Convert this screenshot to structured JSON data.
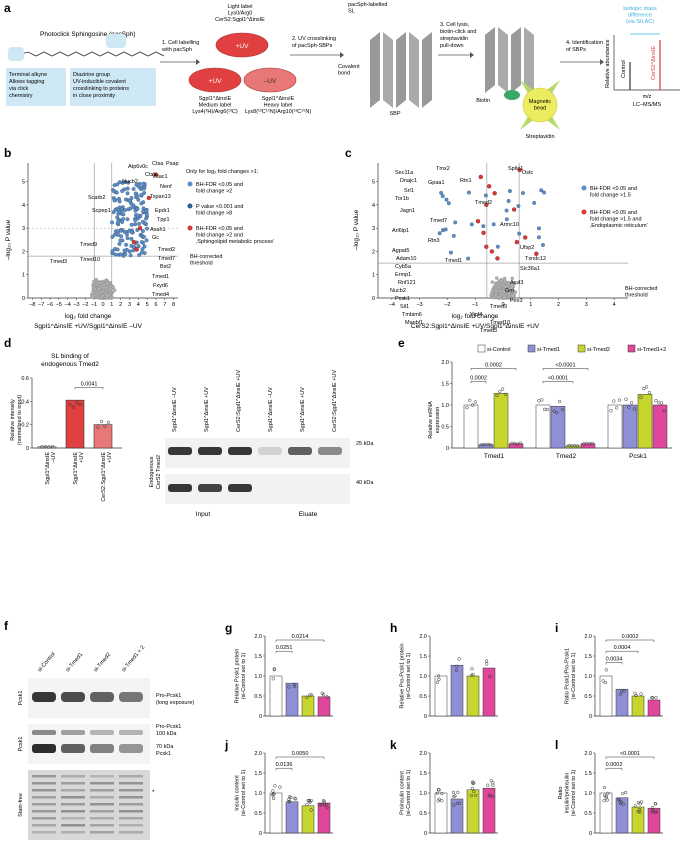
{
  "colors": {
    "blue": "#5b8fc7",
    "red": "#d63a3a",
    "grey": "#b0b0b0",
    "si_control": "#ffffff",
    "si_tmed1": "#8f8fd6",
    "si_tmed2": "#c7d62e",
    "si_tmed1_2": "#e0479a",
    "light_blue_box": "#cfe8f5",
    "cyan_text": "#3fb0e0",
    "dish_red": "#e04040",
    "dish_rose": "#e87878",
    "bead": "#ecec60",
    "stain_bg": "#d8d8d8"
  },
  "panel_a": {
    "letter": "a",
    "compound_title": "Photoclick Sphingosine (pacSph)",
    "alkyne_note": "Terminal alkyne\nAllows tagging\nvia click\nchemistry",
    "diazirine_note": "Diazirine group\nUV-inducible covalent\ncrosslinking to proteins\nin close proximity",
    "step1": "1. Cell labelling\nwith pacSph",
    "light_label": "Light label\nLys0/Arg0\nCerS2:Sgpl1^ΔinsIE",
    "dish_plus_uv": "+UV",
    "dish_plus_uv2": "+UV",
    "dish_minus_uv": "–UV",
    "medium_label": "Sgpl1^ΔinsIE\nMedium label\nLys4(²H)/Arg6(¹³C)",
    "heavy_label": "Sgpl1^ΔinsIE\nHeavy label\nLys8(¹³C¹⁵N)/Arg10(¹³C¹⁵N)",
    "step2": "2. UV crosslinking\nof pacSph-SBPs",
    "sl_label": "pacSph-labelled\nSL",
    "covalent": "Covalent\nbond",
    "sbp": "SBP",
    "step3": "3. Cell lysis,\nbiotin-click and\nstreptavidin\npull-down",
    "biotin": "Biotin",
    "bead": "Magnetic\nbead",
    "streptavidin": "Streptavidin",
    "step4": "4. Identification\nof SBPs",
    "isotopic": "Isotopic mass\ndifference\n(via SILAC)",
    "control": "Control",
    "cers2": "CerS2^ΔinsIE",
    "rel_abundance": "Relative abundance",
    "mz": "m/z",
    "lcms": "LC–MS/MS"
  },
  "panel_b": {
    "letter": "b",
    "ylabel": "–log₁₀ P value",
    "xlabel_1": "log₂ fold change",
    "xlabel_2": "Sgpl1^ΔinsIE +UV/Sgpl1^ΔinsIE –UV",
    "xticks": [
      "–8",
      "–7",
      "–6",
      "–5",
      "–4",
      "–3",
      "–2",
      "–1",
      "0",
      "1",
      "2",
      "3",
      "4",
      "5",
      "6",
      "7",
      "8"
    ],
    "yticks": [
      "0",
      "1",
      "2",
      "3",
      "4",
      "5"
    ],
    "legend_title": "Only for log₂ fold changes >1:",
    "legend": [
      {
        "color": "blue",
        "text": "BH-FDR <0.05 and\nfold change >2"
      },
      {
        "color": "darkblue",
        "text": "P value <0.001 and\nfold change >8"
      },
      {
        "color": "red",
        "text": "BH-FDR <0.05 and\nfold change >2 and\n‚Sphingolipid metabolic process’"
      }
    ],
    "threshold_label": "BH-corrected\nthreshold",
    "labels": [
      "Atp6v0c",
      "Ctsa",
      "Psap",
      "Ctsb",
      "Vdac1",
      "Nucb2",
      "Nenf",
      "Scarb2",
      "Tspan13",
      "Scpep1",
      "Epdr1",
      "Tpp1",
      "Asah1",
      "Gc",
      "Tmed9",
      "Tmed10",
      "Tmed3",
      "Tmed2",
      "Tmed7",
      "Bst2",
      "Tmed1",
      "Fxyd6",
      "Tmed4"
    ]
  },
  "panel_c": {
    "letter": "c",
    "ylabel": "–log₁₀ P value",
    "xlabel_1": "log₂ fold change",
    "xlabel_2": "CerS2:Sgpl1^ΔinsIE +UV/Sgpl1^ΔinsIE +UV",
    "xticks": [
      "–4",
      "–3",
      "–2",
      "–1",
      "0",
      "1",
      "2",
      "3",
      "4"
    ],
    "yticks": [
      "0",
      "1",
      "2",
      "3",
      "4",
      "5"
    ],
    "legend": [
      {
        "color": "blue",
        "text": "BH-FDR <0.05 and\nfold change >1.5"
      },
      {
        "color": "red",
        "text": "BH-FDR <0.05 and\nfold change >1.5 and\n‚Endoplasmic reticulum’"
      }
    ],
    "threshold_label": "BH-corrected\nthreshold",
    "labels": [
      "Sec11a",
      "Tmx2",
      "Sptlc1",
      "Ostc",
      "Dnajc1",
      "Gpaa1",
      "Rtn1",
      "Srl1",
      "Tor1b",
      "Tmed2",
      "Jagn1",
      "Tmed7",
      "Armc10",
      "Arl6ip1",
      "Rtn3",
      "Agpat5",
      "Ufsp2",
      "Adam10",
      "Tmed1",
      "Txndc12",
      "Cyb5a",
      "Ermp1",
      "Slc36a1",
      "Rnf121",
      "Acsl3",
      "Nucb2",
      "Grn",
      "Pcsk1",
      "Pex3",
      "Sil1",
      "Tmed9",
      "Tmbim6",
      "Yipf4",
      "Tmed10",
      "Manbl1",
      "Tmed3"
    ]
  },
  "panel_d": {
    "letter": "d",
    "title": "SL binding of\nendogenous Tmed2",
    "ylabel": "Relative intensity\n(normalized to input)",
    "yticks": [
      "0",
      "0.2",
      "0.4",
      "0.6"
    ],
    "pvalue": "0.0041",
    "bar_labels": [
      "Sgpl1^ΔinsIE\n–UV",
      "Sgpl1^ΔinsIE\n+UV",
      "CerS2:Sgpl1^ΔinsIE\n+UV"
    ],
    "lane_labels": [
      "Sgpl1^ΔinsIE –UV",
      "Sgpl1^ΔinsIE +UV",
      "CerS2:Sgpl1^ΔinsIE +UV",
      "Sgpl1^ΔinsIE –UV",
      "Sgpl1^ΔinsIE +UV",
      "CerS2:Sgpl1^ΔinsIE +UV"
    ],
    "blot_ylabel": "Endogenous\nCerS2 Tmed2",
    "kda_25": "25 kDa",
    "kda_40": "40 kDa",
    "input": "Input",
    "eluate": "Eluate"
  },
  "panel_e": {
    "letter": "e",
    "legend": [
      "si-Control",
      "si-Tmed1",
      "si-Tmed2",
      "si-Tmed1+2"
    ],
    "ylabel": "Relative mRNA\nexpression",
    "yticks": [
      "0",
      "0.5",
      "1.0",
      "1.5",
      "2.0"
    ],
    "groups": [
      "Tmed1",
      "Tmed2",
      "Pcsk1"
    ],
    "pvalues": [
      "0.0002",
      "0.0002",
      "<0.0001",
      "<0.0001"
    ]
  },
  "panel_f": {
    "letter": "f",
    "lanes": [
      "si-Control",
      "si-Tmed1",
      "si-Tmed2",
      "si-Tmed1 + 2"
    ],
    "row_labels": [
      "Pcsk1",
      "Pcsk1",
      "Stain-free"
    ],
    "band_labels": [
      "Pro-Pcsk1\n(long exposure)",
      "Pro-Pcsk1\n100 kDa",
      "70 kDa\nPcsk1"
    ],
    "star": "*"
  },
  "chart_data": [
    {
      "type": "bar",
      "panel": "d",
      "categories": [
        "Sgpl1ΔinsIE –UV",
        "Sgpl1ΔinsIE +UV",
        "CerS2:Sgpl1ΔinsIE +UV"
      ],
      "values": [
        0.01,
        0.41,
        0.2
      ],
      "ylim": [
        0,
        0.6
      ]
    },
    {
      "type": "bar",
      "panel": "e",
      "categories": [
        "Tmed1",
        "Tmed2",
        "Pcsk1"
      ],
      "series": [
        {
          "name": "si-Control",
          "values": [
            1.0,
            1.0,
            1.0
          ]
        },
        {
          "name": "si-Tmed1",
          "values": [
            0.08,
            0.97,
            1.0
          ]
        },
        {
          "name": "si-Tmed2",
          "values": [
            1.27,
            0.05,
            1.25
          ]
        },
        {
          "name": "si-Tmed1+2",
          "values": [
            0.1,
            0.1,
            1.0
          ]
        }
      ],
      "ylim": [
        0,
        2.0
      ]
    },
    {
      "type": "bar",
      "panel": "g",
      "letter": "g",
      "ylabel": "Relative Pcsk1 protein\n(si-Control set to 1)",
      "categories": [
        "si-Control",
        "si-Tmed1",
        "si-Tmed2",
        "si-Tmed1+2"
      ],
      "values": [
        1.0,
        0.82,
        0.5,
        0.48
      ],
      "ylim": [
        0,
        2.0
      ],
      "yticks": [
        "0",
        "0.5",
        "1.0",
        "1.5",
        "2.0"
      ],
      "pvalues": [
        "0.0214",
        "0.0251"
      ]
    },
    {
      "type": "bar",
      "panel": "h",
      "letter": "h",
      "ylabel": "Relative Pro-Pcsk1 protein\n(si-Control set to 1)",
      "categories": [
        "si-Control",
        "si-Tmed1",
        "si-Tmed2",
        "si-Tmed1+2"
      ],
      "values": [
        1.0,
        1.27,
        1.0,
        1.2
      ],
      "ylim": [
        0,
        2.0
      ],
      "yticks": [
        "0",
        "0.5",
        "1.0",
        "1.5",
        "2.0"
      ],
      "pvalues": []
    },
    {
      "type": "bar",
      "panel": "i",
      "letter": "i",
      "ylabel": "Ratio Pcsk1/Pro-Pcsk1\n(si-Control set to 1)",
      "categories": [
        "si-Control",
        "si-Tmed1",
        "si-Tmed2",
        "si-Tmed1+2"
      ],
      "values": [
        1.0,
        0.67,
        0.5,
        0.4
      ],
      "ylim": [
        0,
        2.0
      ],
      "yticks": [
        "0",
        "0.5",
        "1.0",
        "1.5",
        "2.0"
      ],
      "pvalues": [
        "0.0002",
        "0.0004",
        "0.0034"
      ]
    },
    {
      "type": "bar",
      "panel": "j",
      "letter": "j",
      "ylabel": "Insulin content\n(si-Control set to 1)",
      "categories": [
        "si-Control",
        "si-Tmed1",
        "si-Tmed2",
        "si-Tmed1+2"
      ],
      "values": [
        1.0,
        0.78,
        0.68,
        0.75
      ],
      "ylim": [
        0,
        2.0
      ],
      "yticks": [
        "0",
        "0.5",
        "1.0",
        "1.5",
        "2.0"
      ],
      "pvalues": [
        "0.0050",
        "0.0136"
      ]
    },
    {
      "type": "bar",
      "panel": "k",
      "letter": "k",
      "ylabel": "Proinsulin content\n(si-Control set to 1)",
      "categories": [
        "si-Control",
        "si-Tmed1",
        "si-Tmed2",
        "si-Tmed1+2"
      ],
      "values": [
        1.0,
        0.85,
        1.08,
        1.12
      ],
      "ylim": [
        0,
        2.0
      ],
      "yticks": [
        "0",
        "0.5",
        "1.0",
        "1.5",
        "2.0"
      ],
      "pvalues": []
    },
    {
      "type": "bar",
      "panel": "l",
      "letter": "l",
      "ylabel": "Ratio\ninsulin/proinsulin\n(si-Control set to 1)",
      "categories": [
        "si-Control",
        "si-Tmed1",
        "si-Tmed2",
        "si-Tmed1+2"
      ],
      "values": [
        1.0,
        0.88,
        0.65,
        0.62
      ],
      "ylim": [
        0,
        2.0
      ],
      "yticks": [
        "0",
        "0.5",
        "1.0",
        "1.5",
        "2.0"
      ],
      "pvalues": [
        "<0.0001",
        "0.0002"
      ]
    }
  ]
}
